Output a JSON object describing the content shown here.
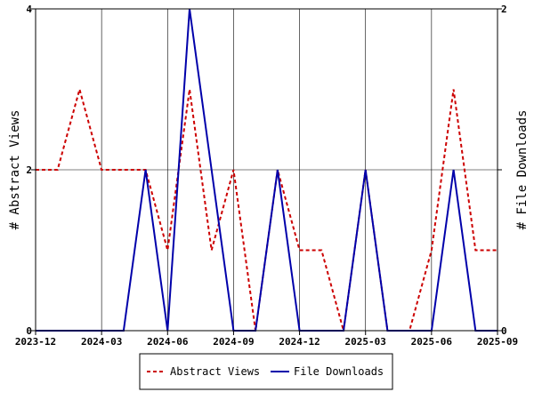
{
  "chart_data": {
    "type": "line",
    "title": "",
    "xlabel": "",
    "ylabel": "# Abstract Views",
    "y2label": "# File Downloads",
    "x_tick_labels": [
      "2023-12",
      "2024-03",
      "2024-06",
      "2024-09",
      "2024-12",
      "2025-03",
      "2025-06",
      "2025-09"
    ],
    "x": [
      "2023-12",
      "2024-01",
      "2024-02",
      "2024-03",
      "2024-04",
      "2024-05",
      "2024-06",
      "2024-07",
      "2024-08",
      "2024-09",
      "2024-10",
      "2024-11",
      "2024-12",
      "2025-01",
      "2025-02",
      "2025-03",
      "2025-04",
      "2025-05",
      "2025-06",
      "2025-07",
      "2025-08",
      "2025-09"
    ],
    "ylim": [
      0,
      4
    ],
    "y_ticks": [
      "0",
      "2",
      "4"
    ],
    "y2lim": [
      0,
      2
    ],
    "y2_ticks": [
      "0",
      "1",
      "2"
    ],
    "grid": true,
    "legend_position": "bottom",
    "series": [
      {
        "name": "Abstract Views",
        "axis": "left",
        "color": "#cc0000",
        "style": "dashed",
        "values": [
          2,
          2,
          3,
          2,
          2,
          2,
          1,
          3,
          1,
          2,
          0,
          2,
          1,
          1,
          0,
          2,
          0,
          0,
          1,
          3,
          1,
          1
        ]
      },
      {
        "name": "File Downloads",
        "axis": "right",
        "color": "#0000aa",
        "style": "solid",
        "values": [
          0,
          0,
          0,
          0,
          0,
          1,
          0,
          2,
          1,
          0,
          0,
          1,
          0,
          0,
          0,
          1,
          0,
          0,
          0,
          1,
          0,
          0
        ]
      }
    ]
  }
}
